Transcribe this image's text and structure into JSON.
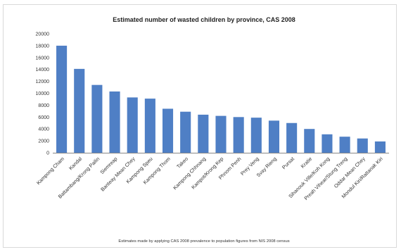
{
  "chart_data": {
    "type": "bar",
    "title": "Estimated number of wasted children by province, CAS 2008",
    "note": "Estimates made by applying CAS 2008 prevalence to population figures from NIS 2008 census",
    "xlabel": "",
    "ylabel": "",
    "ylim": [
      0,
      20000
    ],
    "yticks": [
      0,
      2000,
      4000,
      6000,
      8000,
      10000,
      12000,
      14000,
      16000,
      18000,
      20000
    ],
    "grid": false,
    "legend": "none",
    "bar_color": "#4f7fc5",
    "categories": [
      "Kampong Cham",
      "Kandal",
      "Battambang/Krong Pailin",
      "Siemreap",
      "Banteay Mean Chey",
      "Kampong Speu",
      "Kampong Thom",
      "Takeo",
      "Kampong Chhnang",
      "Kampot/Krong Kep",
      "Phnom Penh",
      "Prey Veng",
      "Svay Rieng",
      "Pursat",
      "Kratie",
      "Sihanouk Ville/Koh Kong",
      "Preah Vihear/Stung Treng",
      "Oddar Mean Chey",
      "Mondul Kiri/Rattanak Kiri"
    ],
    "values": [
      18000,
      14100,
      11400,
      10300,
      9300,
      9100,
      7400,
      6900,
      6400,
      6200,
      6000,
      5900,
      5400,
      5000,
      4000,
      3100,
      2700,
      2400,
      1900
    ]
  }
}
